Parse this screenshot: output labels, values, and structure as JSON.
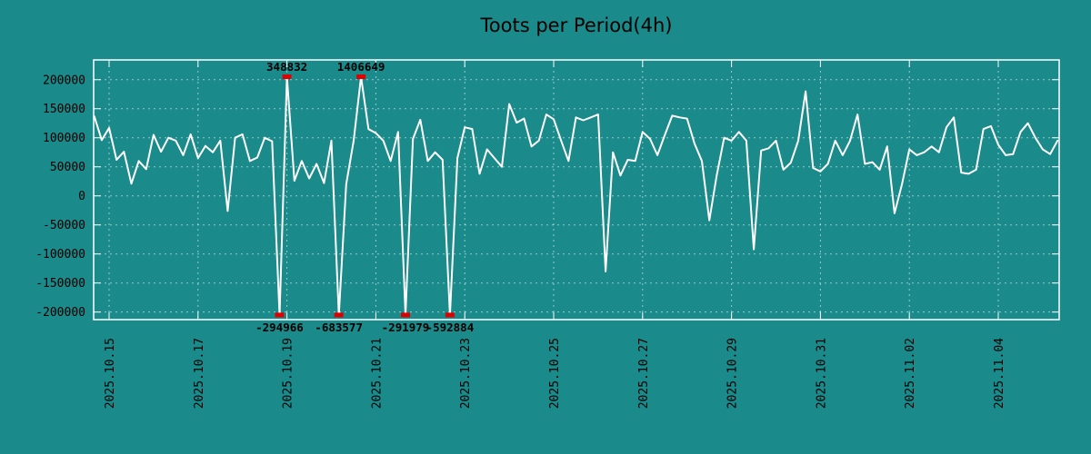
{
  "page": {
    "background_color": "#1a8a8a"
  },
  "chart_data": {
    "type": "line",
    "title": "Toots per Period(4h)",
    "period_hours": 4,
    "start_day_offset": -0.33333,
    "x_axis": {
      "tick_labels": [
        "2025.10.15",
        "2025.10.17",
        "2025.10.19",
        "2025.10.21",
        "2025.10.23",
        "2025.10.25",
        "2025.10.27",
        "2025.10.29",
        "2025.10.31",
        "2025.11.02",
        "2025.11.04"
      ],
      "tick_day_offsets": [
        0,
        2,
        4,
        6,
        8,
        10,
        12,
        14,
        16,
        18,
        20
      ]
    },
    "y_axis": {
      "tick_labels": [
        "200000",
        "150000",
        "100000",
        "50000",
        "0",
        "-50000",
        "-100000",
        "-150000",
        "-200000"
      ],
      "tick_values": [
        200000,
        150000,
        100000,
        50000,
        0,
        -50000,
        -100000,
        -150000,
        -200000
      ]
    },
    "ylim": [
      -213000,
      234000
    ],
    "clip_value": 205000,
    "grid": true,
    "legend": false,
    "values": [
      137000,
      96000,
      117000,
      62000,
      76000,
      21000,
      60000,
      46000,
      105000,
      76000,
      100000,
      95000,
      70000,
      106000,
      65000,
      86000,
      75000,
      95000,
      -26000,
      100000,
      106000,
      60000,
      66000,
      100000,
      94000,
      -294966,
      348832,
      26000,
      60000,
      30000,
      55000,
      22000,
      95000,
      -683577,
      20000,
      95000,
      1406649,
      115000,
      108000,
      95000,
      60000,
      110000,
      -291979,
      98000,
      131000,
      60000,
      75000,
      62000,
      -592884,
      65000,
      118000,
      115000,
      38000,
      80000,
      65000,
      50000,
      158000,
      126000,
      133000,
      85000,
      95000,
      140000,
      132000,
      95000,
      60000,
      135000,
      130000,
      135000,
      140000,
      -130000,
      75000,
      35000,
      62000,
      60000,
      110000,
      98000,
      70000,
      105000,
      138000,
      135000,
      133000,
      90000,
      60000,
      -42000,
      35000,
      100000,
      95000,
      110000,
      95000,
      -92000,
      78000,
      82000,
      95000,
      45000,
      57000,
      95000,
      180000,
      48000,
      42000,
      55000,
      95000,
      70000,
      95000,
      140000,
      55000,
      58000,
      45000,
      85000,
      -30000,
      20000,
      80000,
      70000,
      75000,
      85000,
      75000,
      118000,
      135000,
      40000,
      38000,
      45000,
      115000,
      120000,
      88000,
      70000,
      72000,
      110000,
      125000,
      100000,
      80000,
      72000,
      95000
    ],
    "annotations": [
      {
        "day_offset": 3.8333,
        "value": -294966,
        "label": "-294966",
        "side": "bottom"
      },
      {
        "day_offset": 4.0,
        "value": 348832,
        "label": "348832",
        "side": "top"
      },
      {
        "day_offset": 5.1667,
        "value": -683577,
        "label": "-683577",
        "side": "bottom"
      },
      {
        "day_offset": 5.6667,
        "value": 1406649,
        "label": "1406649",
        "side": "top"
      },
      {
        "day_offset": 6.6667,
        "value": -291979,
        "label": "-291979",
        "side": "bottom"
      },
      {
        "day_offset": 7.6667,
        "value": -592884,
        "label": "-592884",
        "side": "bottom"
      }
    ],
    "colors": {
      "background": "#1a8a8a",
      "line": "#ffffff",
      "grid": "#ffffff",
      "border": "#ffffff",
      "tick_text": "#000000",
      "annotation_text": "#000000",
      "outlier_marker": "#e00000"
    }
  }
}
